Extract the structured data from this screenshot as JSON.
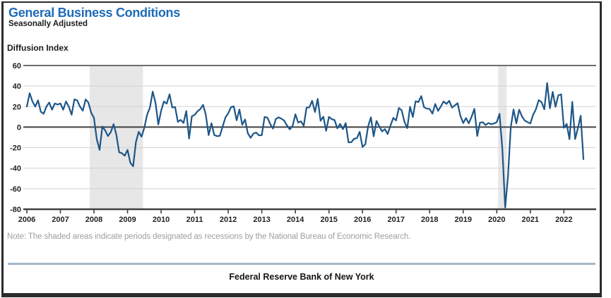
{
  "header": {
    "title": "General Business Conditions",
    "subtitle": "Seasonally Adjusted"
  },
  "axis_label": "Diffusion Index",
  "note": "Note: The shaded areas indicate periods designated as recessions by the National Bureau of Economic Research.",
  "footer": "Federal Reserve Bank of New York",
  "colors": {
    "title_blue": "#1e6bb8",
    "line_blue": "#1d5688",
    "recession_band": "#e7e7e7",
    "gridline": "#d2d2d2",
    "top_line": "#58595b",
    "zero_line": "#404042",
    "axis": "#404042",
    "note_gray": "#9c9ea1",
    "footer_rule": "#a3b7cb"
  },
  "chart_data": {
    "type": "line",
    "title": "General Business Conditions",
    "subtitle": "Seasonally Adjusted",
    "ylabel": "Diffusion Index",
    "xlabel": "",
    "ylim": [
      -80,
      60
    ],
    "y_ticks": [
      60,
      40,
      20,
      0,
      -20,
      -40,
      -60,
      -80
    ],
    "x_tick_years": [
      2006,
      2007,
      2008,
      2009,
      2010,
      2011,
      2012,
      2013,
      2014,
      2015,
      2016,
      2017,
      2018,
      2019,
      2020,
      2021,
      2022
    ],
    "start_month": "2006-01",
    "frequency": "monthly",
    "grid": true,
    "legend_position": "none",
    "recession_bands": [
      {
        "start": "2007-12",
        "end": "2009-06"
      },
      {
        "start": "2020-02",
        "end": "2020-04"
      }
    ],
    "series": [
      {
        "name": "General Business Conditions (Diffusion Index, SA)",
        "values": [
          20.0,
          33.0,
          25.0,
          20.0,
          26.0,
          15.0,
          13.0,
          20.0,
          24.0,
          17.0,
          23.0,
          22.0,
          23.0,
          17.0,
          25.0,
          20.0,
          12.0,
          27.0,
          26.0,
          20.0,
          16.0,
          27.0,
          24.0,
          14.0,
          9.0,
          -11.7,
          -22.2,
          0.6,
          -3.2,
          -8.7,
          -4.9,
          2.8,
          -7.4,
          -24.6,
          -25.4,
          -27.9,
          -22.2,
          -34.7,
          -38.2,
          -14.7,
          -4.6,
          -9.4,
          -0.6,
          12.1,
          18.9,
          34.6,
          23.5,
          2.6,
          15.9,
          24.9,
          22.9,
          31.9,
          19.1,
          19.6,
          5.1,
          7.1,
          4.1,
          15.7,
          -11.1,
          10.6,
          11.9,
          15.4,
          17.5,
          21.7,
          11.9,
          -7.8,
          3.8,
          -7.7,
          -8.8,
          -8.5,
          0.6,
          9.5,
          13.5,
          19.5,
          20.2,
          6.6,
          17.1,
          2.3,
          7.4,
          -5.9,
          -10.4,
          -6.2,
          -5.3,
          -8.1,
          -7.8,
          10.0,
          9.2,
          3.1,
          -1.4,
          7.8,
          9.5,
          8.2,
          6.3,
          1.5,
          -2.2,
          1.0,
          12.5,
          4.5,
          5.6,
          1.3,
          19.0,
          19.3,
          25.6,
          14.7,
          27.5,
          6.2,
          10.2,
          -3.6,
          10.0,
          7.8,
          6.9,
          -1.2,
          3.1,
          -2.0,
          3.9,
          -14.9,
          -14.7,
          -11.4,
          -10.7,
          -4.6,
          -19.4,
          -16.6,
          0.6,
          9.6,
          -9.0,
          6.0,
          0.6,
          -4.2,
          -2.0,
          -6.8,
          1.5,
          9.0,
          6.5,
          18.7,
          16.4,
          5.2,
          -1.0,
          19.8,
          9.8,
          25.2,
          24.4,
          30.2,
          19.4,
          18.0,
          17.7,
          13.1,
          22.5,
          15.8,
          20.1,
          25.0,
          22.6,
          25.6,
          19.0,
          21.1,
          23.3,
          10.9,
          3.9,
          8.8,
          3.7,
          10.1,
          17.8,
          -8.6,
          4.3,
          4.8,
          2.0,
          4.0,
          2.9,
          3.5,
          4.8,
          12.9,
          -21.5,
          -78.2,
          -48.5,
          -0.2,
          17.2,
          3.7,
          17.0,
          10.5,
          6.3,
          4.9,
          3.5,
          12.1,
          17.4,
          26.3,
          24.3,
          17.4,
          43.0,
          18.3,
          34.3,
          19.8,
          30.9,
          31.9,
          -0.7,
          3.1,
          -11.8,
          24.6,
          -11.6,
          -1.2,
          11.1,
          -31.3
        ]
      }
    ]
  }
}
